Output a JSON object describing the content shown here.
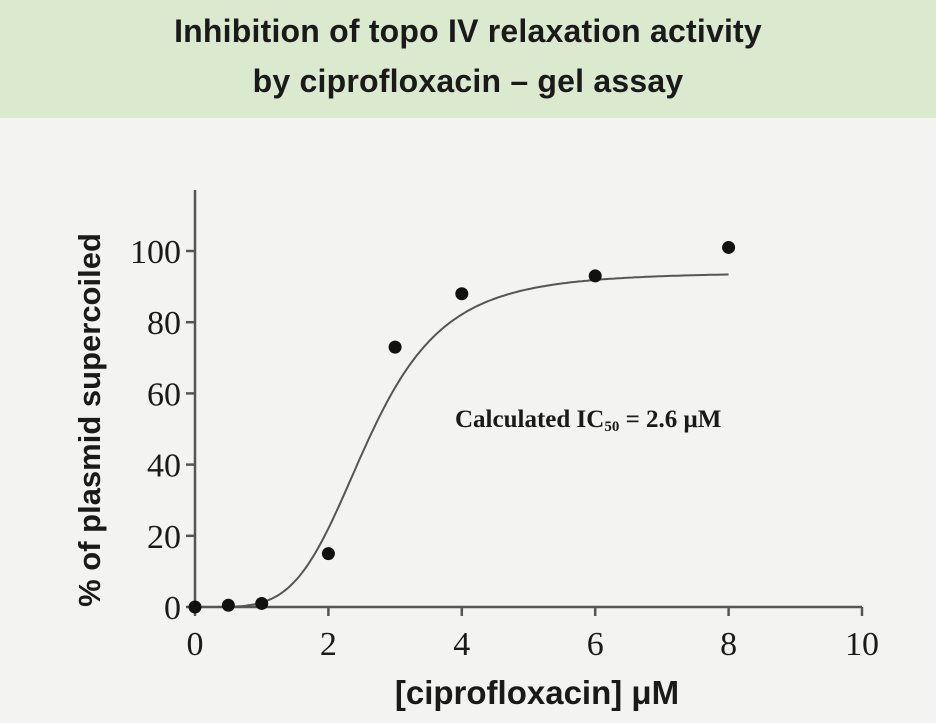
{
  "colors": {
    "header_bg": "#dbe9cf",
    "plot_bg": "#f3f3f1",
    "ink": "#1a1a1a"
  },
  "chart_data": {
    "type": "scatter",
    "title": [
      "Inhibition of topo IV relaxation activity",
      "by ciprofloxacin – gel assay"
    ],
    "xlabel": "[ciprofloxacin]  μM",
    "ylabel": "% of plasmid supercoiled",
    "xlim": [
      0,
      10
    ],
    "ylim": [
      0,
      100
    ],
    "x_ticks": [
      0,
      2,
      4,
      6,
      8,
      10
    ],
    "y_ticks": [
      0,
      20,
      40,
      60,
      80,
      100
    ],
    "grid": false,
    "series": [
      {
        "marker": "filled-circle",
        "points": [
          {
            "x": 0,
            "y": 0
          },
          {
            "x": 0.5,
            "y": 0.5
          },
          {
            "x": 1,
            "y": 1
          },
          {
            "x": 2,
            "y": 15
          },
          {
            "x": 3,
            "y": 73
          },
          {
            "x": 4,
            "y": 88
          },
          {
            "x": 6,
            "y": 93
          },
          {
            "x": 8,
            "y": 101
          }
        ]
      }
    ],
    "fit_curve": {
      "type": "sigmoid",
      "top": 94,
      "bottom": 0,
      "ic50": 2.6,
      "hill": 4.5,
      "x_range": [
        0,
        8
      ]
    },
    "annotation": {
      "prefix": "Calculated IC",
      "subscript": "50",
      "suffix": " = 2.6 μM"
    }
  }
}
